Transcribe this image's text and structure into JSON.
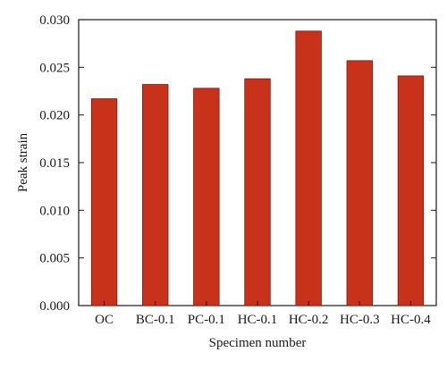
{
  "chart_data": {
    "type": "bar",
    "categories": [
      "OC",
      "BC-0.1",
      "PC-0.1",
      "HC-0.1",
      "HC-0.2",
      "HC-0.3",
      "HC-0.4"
    ],
    "values": [
      0.0217,
      0.0232,
      0.0228,
      0.0238,
      0.0288,
      0.0257,
      0.0241
    ],
    "xlabel": "Specimen number",
    "ylabel": "Peak strain",
    "ylim": [
      0,
      0.03
    ],
    "yticks": [
      "0.000",
      "0.005",
      "0.010",
      "0.015",
      "0.020",
      "0.025",
      "0.030"
    ],
    "grid": false,
    "bar_color": "#c8321a",
    "bar_edge_color": "#7a1a0a"
  }
}
